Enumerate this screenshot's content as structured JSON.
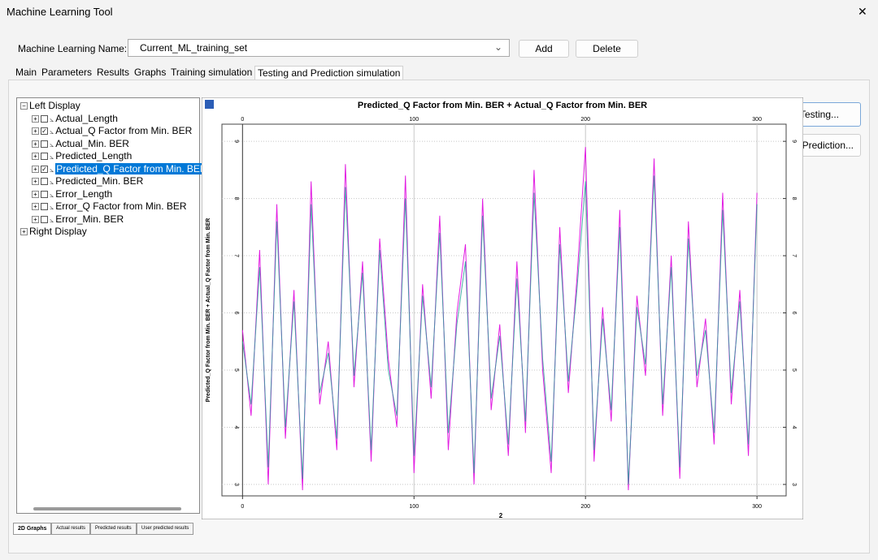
{
  "window": {
    "title": "Machine Learning Tool",
    "close": "✕"
  },
  "toolbar": {
    "name_label": "Machine Learning Name:",
    "name_value": "Current_ML_training_set",
    "buttons": [
      "Add",
      "Delete"
    ]
  },
  "tabs": [
    "Main",
    "Parameters",
    "Results",
    "Graphs",
    "Training simulation",
    "Testing and Prediction simulation"
  ],
  "active_tab": 5,
  "tree": {
    "roots": [
      "Left Display",
      "Right Display"
    ],
    "children": [
      {
        "label": "Actual_Length",
        "checked": false
      },
      {
        "label": "Actual_Q Factor from Min. BER",
        "checked": true
      },
      {
        "label": "Actual_Min. BER",
        "checked": false
      },
      {
        "label": "Predicted_Length",
        "checked": false
      },
      {
        "label": "Predicted_Q Factor from Min. BER",
        "checked": true
      },
      {
        "label": "Predicted_Min. BER",
        "checked": false
      },
      {
        "label": "Error_Length",
        "checked": false
      },
      {
        "label": "Error_Q Factor from Min. BER",
        "checked": false
      },
      {
        "label": "Error_Min. BER",
        "checked": false
      }
    ],
    "selected": 4
  },
  "side_buttons": [
    "Testing...",
    "Prediction..."
  ],
  "bottom_tabs": [
    "2D Graphs",
    "Actual results",
    "Predicted results",
    "User predicted results"
  ],
  "active_bottom_tab": 0,
  "chart_data": {
    "type": "line",
    "title": "Predicted_Q Factor from Min. BER + Actual_Q Factor from Min. BER",
    "xlabel": "2",
    "ylabel": "Predicted_Q Factor from Min. BER + Actual_Q Factor from Min. BER",
    "x": [
      0,
      5,
      10,
      15,
      20,
      25,
      30,
      35,
      40,
      45,
      50,
      55,
      60,
      65,
      70,
      75,
      80,
      85,
      90,
      95,
      100,
      105,
      110,
      115,
      120,
      125,
      130,
      135,
      140,
      145,
      150,
      155,
      160,
      165,
      170,
      175,
      180,
      185,
      190,
      195,
      200,
      205,
      210,
      215,
      220,
      225,
      230,
      235,
      240,
      245,
      250,
      255,
      260,
      265,
      270,
      275,
      280,
      285,
      290,
      295,
      300
    ],
    "series": [
      {
        "color": "#e21ee2",
        "values": [
          5.7,
          4.2,
          7.1,
          3.0,
          7.9,
          3.8,
          6.4,
          2.9,
          8.3,
          4.4,
          5.5,
          3.6,
          8.6,
          4.7,
          6.9,
          3.4,
          7.3,
          5.2,
          4.0,
          8.4,
          3.2,
          6.5,
          4.5,
          7.7,
          3.6,
          6.0,
          7.2,
          3.0,
          8.0,
          4.3,
          5.8,
          3.5,
          6.9,
          3.9,
          8.5,
          5.0,
          3.2,
          7.5,
          4.6,
          6.6,
          8.9,
          3.4,
          6.1,
          4.1,
          7.8,
          2.9,
          6.3,
          4.9,
          8.7,
          4.2,
          7.0,
          3.1,
          7.6,
          4.7,
          5.9,
          3.7,
          8.1,
          4.4,
          6.4,
          3.5,
          8.1
        ]
      },
      {
        "color": "#2a9e9a",
        "values": [
          5.5,
          4.4,
          6.8,
          3.3,
          7.6,
          4.0,
          6.2,
          3.1,
          7.9,
          4.6,
          5.3,
          3.8,
          8.2,
          4.9,
          6.7,
          3.6,
          7.1,
          5.0,
          4.2,
          8.0,
          3.5,
          6.3,
          4.7,
          7.4,
          3.9,
          5.8,
          6.9,
          3.2,
          7.7,
          4.5,
          5.6,
          3.7,
          6.6,
          4.1,
          8.1,
          5.2,
          3.4,
          7.2,
          4.8,
          6.4,
          8.3,
          3.6,
          5.9,
          4.3,
          7.5,
          3.0,
          6.1,
          5.1,
          8.4,
          4.4,
          6.8,
          3.3,
          7.3,
          4.9,
          5.7,
          3.9,
          7.8,
          4.6,
          6.2,
          3.7,
          7.9
        ]
      }
    ],
    "xlim": [
      -12,
      317
    ],
    "ylim": [
      2.8,
      9.3
    ],
    "xticks": [
      0,
      100,
      200,
      300
    ],
    "yticks": [
      3,
      4,
      5,
      6,
      7,
      8,
      9
    ],
    "grid": true
  }
}
